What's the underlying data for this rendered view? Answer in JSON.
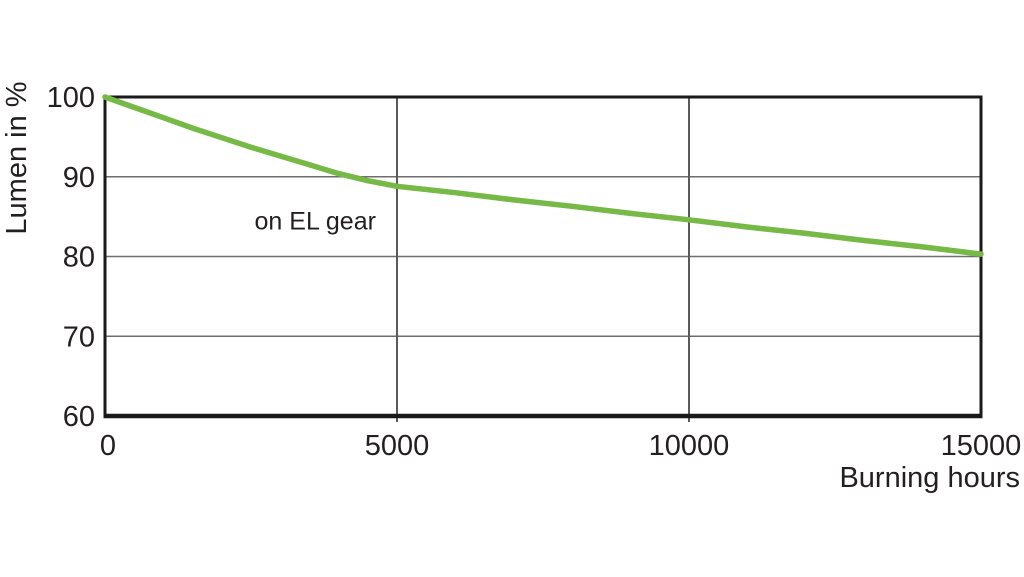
{
  "chart_data": {
    "type": "line",
    "title": "",
    "xlabel": "Burning hours",
    "ylabel": "Lumen in %",
    "xlim": [
      0,
      15000
    ],
    "ylim": [
      60,
      100
    ],
    "x_ticks": [
      0,
      5000,
      10000,
      15000
    ],
    "y_ticks": [
      60,
      70,
      80,
      90,
      100
    ],
    "grid": {
      "x_gridlines": [
        5000,
        10000
      ],
      "y_gridlines": [
        70,
        80,
        90
      ]
    },
    "legend_position": "none",
    "annotation": {
      "text": "on EL gear",
      "x": 3600,
      "y": 83.4
    },
    "series": [
      {
        "name": "on EL gear",
        "x": [
          0,
          500,
          1000,
          1500,
          2000,
          2500,
          3000,
          3500,
          4000,
          4500,
          5000,
          6000,
          7000,
          8000,
          9000,
          10000,
          11000,
          12000,
          13000,
          14000,
          15000
        ],
        "y": [
          100,
          98.7,
          97.4,
          96.1,
          94.9,
          93.7,
          92.6,
          91.5,
          90.4,
          89.5,
          88.8,
          88.0,
          87.1,
          86.3,
          85.4,
          84.6,
          83.7,
          82.9,
          82.0,
          81.2,
          80.3
        ]
      }
    ],
    "colors": {
      "line": "#76b947",
      "annotation_text": "#76b947",
      "frame": "#1a1a1a",
      "gridline_horizontal": "#6e6e6e",
      "gridline_vertical": "#5a5a5a",
      "text": "#231f20",
      "background": "#ffffff"
    }
  }
}
